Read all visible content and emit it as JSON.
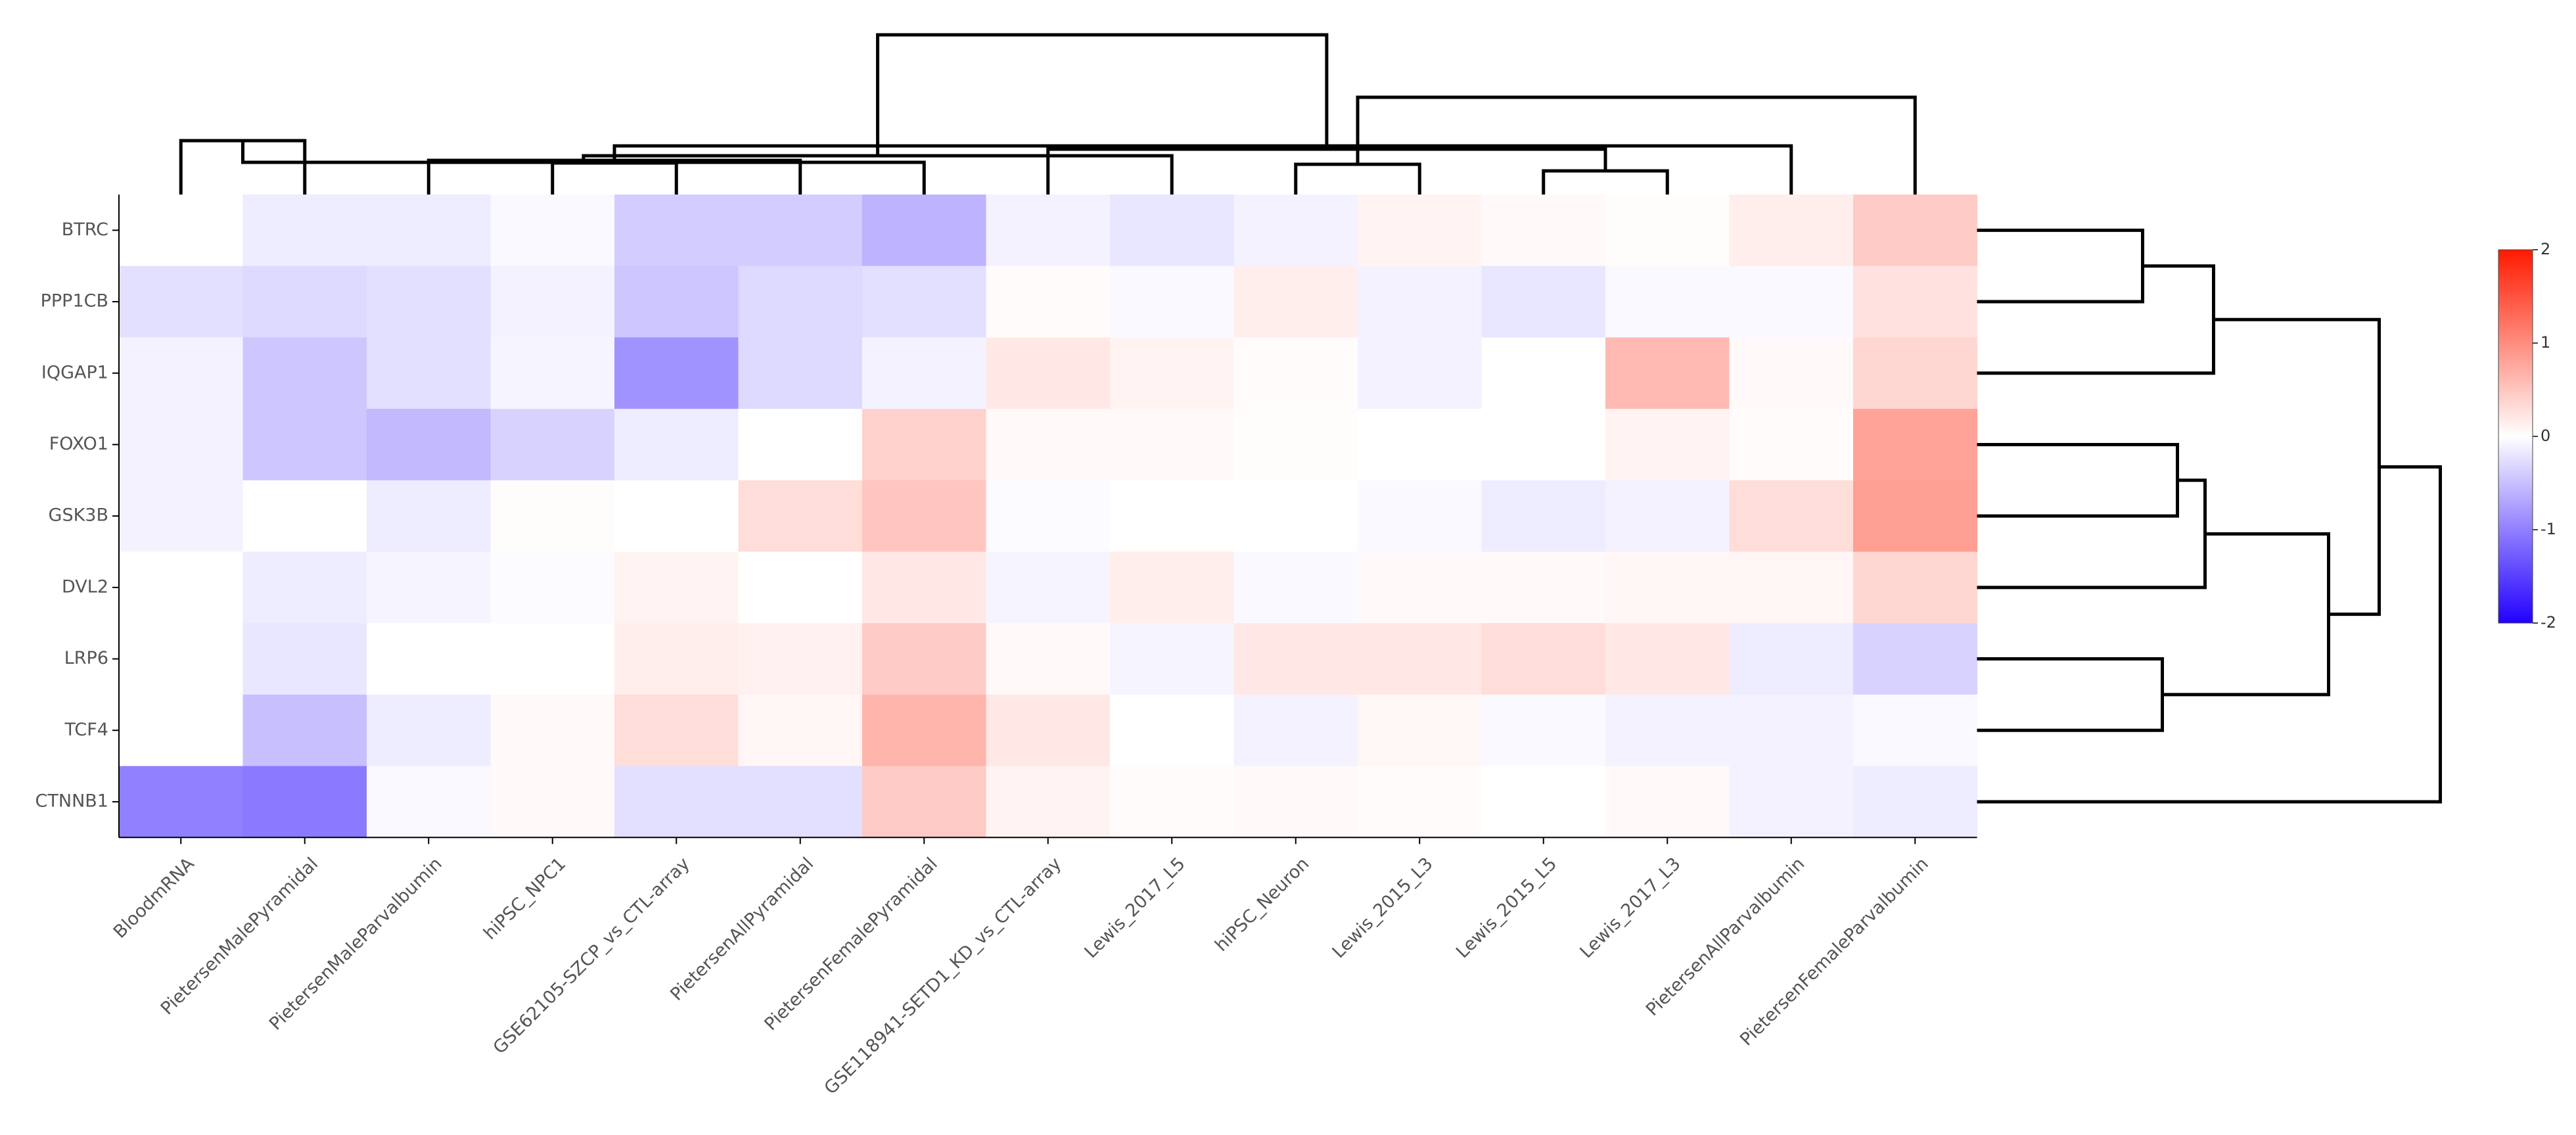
{
  "chart_data": {
    "type": "heatmap",
    "title": "",
    "rows": [
      "BTRC",
      "PPP1CB",
      "IQGAP1",
      "FOXO1",
      "GSK3B",
      "DVL2",
      "LRP6",
      "TCF4",
      "CTNNB1"
    ],
    "columns": [
      "BloodmRNA",
      "PietersenMalePyramidal",
      "PietersenMaleParvalbumin",
      "hiPSC_NPC1",
      "GSE62105-SZCP_vs_CTL-array",
      "PietersenAllPyramidal",
      "PietersenFemalePyramidal",
      "GSE118941-SETD1_KD_vs_CTL-array",
      "Lewis_2017_L5",
      "hiPSC_Neuron",
      "Lewis_2015_L3",
      "Lewis_2015_L5",
      "Lewis_2017_L3",
      "PietersenAllParvalbumin",
      "PietersenFemaleParvalbumin"
    ],
    "values": [
      [
        0.0,
        -0.15,
        -0.15,
        -0.05,
        -0.4,
        -0.4,
        -0.6,
        -0.1,
        -0.2,
        -0.1,
        0.1,
        0.05,
        0.02,
        0.15,
        0.45
      ],
      [
        -0.25,
        -0.3,
        -0.25,
        -0.1,
        -0.45,
        -0.3,
        -0.25,
        0.03,
        -0.05,
        0.15,
        -0.1,
        -0.2,
        -0.05,
        -0.05,
        0.25
      ],
      [
        -0.1,
        -0.45,
        -0.25,
        -0.08,
        -0.85,
        -0.3,
        -0.1,
        0.2,
        0.1,
        0.03,
        -0.1,
        0.0,
        0.6,
        0.05,
        0.35
      ],
      [
        -0.1,
        -0.45,
        -0.55,
        -0.35,
        -0.15,
        0.0,
        0.4,
        0.05,
        0.05,
        0.02,
        0.0,
        0.0,
        0.1,
        0.03,
        0.8
      ],
      [
        -0.1,
        0.0,
        -0.15,
        0.02,
        0.0,
        0.3,
        0.5,
        -0.03,
        0.0,
        0.0,
        -0.05,
        -0.15,
        -0.1,
        0.3,
        0.85
      ],
      [
        0.0,
        -0.15,
        -0.08,
        -0.03,
        0.1,
        0.0,
        0.2,
        -0.08,
        0.15,
        -0.05,
        0.05,
        0.05,
        0.08,
        0.08,
        0.35
      ],
      [
        0.0,
        -0.2,
        0.0,
        0.0,
        0.15,
        0.12,
        0.45,
        0.05,
        -0.08,
        0.2,
        0.2,
        0.3,
        0.2,
        -0.15,
        -0.35
      ],
      [
        0.0,
        -0.5,
        -0.15,
        0.05,
        0.3,
        0.08,
        0.65,
        0.2,
        0.0,
        -0.1,
        0.07,
        -0.05,
        -0.1,
        -0.1,
        -0.05
      ],
      [
        -1.0,
        -1.05,
        -0.05,
        0.05,
        -0.25,
        -0.25,
        0.45,
        0.1,
        0.03,
        0.05,
        0.03,
        0.0,
        0.05,
        -0.1,
        -0.15
      ]
    ],
    "colorscale": {
      "min": -2,
      "max": 2,
      "low_color": "#2200ff",
      "mid_color": "#ffffff",
      "high_color": "#ff1a00",
      "ticks": [
        "2",
        "1",
        "0",
        "-1",
        "-2"
      ]
    },
    "column_dendrogram": [
      [
        0,
        1
      ],
      [
        3,
        4
      ],
      [
        5,
        2
      ],
      [
        15,
        6
      ],
      [
        11,
        12
      ],
      [
        9,
        10
      ],
      [
        8,
        18
      ],
      [
        7,
        19
      ],
      [
        17,
        13
      ],
      [
        20,
        14
      ],
      [
        21,
        22
      ]
    ],
    "row_dendrogram": [
      [
        0,
        1
      ],
      [
        9,
        2
      ],
      [
        3,
        4
      ],
      [
        11,
        5
      ],
      [
        6,
        7
      ],
      [
        12,
        13
      ],
      [
        10,
        14
      ],
      [
        15,
        8
      ]
    ]
  }
}
